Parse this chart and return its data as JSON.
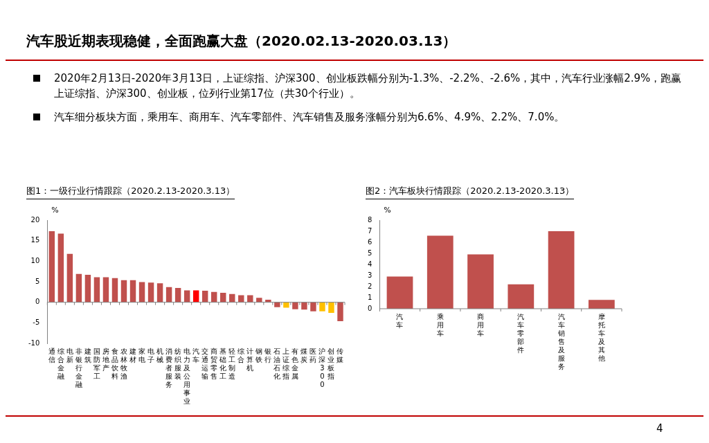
{
  "chart_data": [
    {
      "type": "other",
      "title": "汽车股近期表现稳健，全面跑赢大盘（2020.02.13-2020.03.13）",
      "annotations": [
        "2020年2月13日-2020年3月13日，上证综指、沪深300、创业板跌幅分别为-1.3%、-2.2%、-2.6%，其中，汽车行业涨幅2.9%，跑赢上证综指、沪深300、创业板，位列行业第17位（共30个行业）。",
        "汽车细分板块方面，乘用车、商用车、汽车零部件、汽车销售及服务涨幅分别为6.6%、4.9%、2.2%、7.0%。",
        "4"
      ]
    },
    {
      "type": "bar",
      "title": "图1：一级行业行情跟踪（2020.2.13-2020.3.13）",
      "ylabel": "%",
      "ylim": [
        -10,
        20
      ],
      "yticks": [
        -10,
        -5,
        0,
        5,
        10,
        15,
        20
      ],
      "categories": [
        "通信",
        "综合金融",
        "电新",
        "非银行金融",
        "建筑",
        "国防军工",
        "房地产",
        "食品饮料",
        "农林牧渔",
        "建材",
        "家电",
        "电子",
        "机械",
        "消费者服务",
        "纺织服装",
        "电力及公用事业",
        "汽车",
        "交通运输",
        "商贸零售",
        "基础化工",
        "轻工制造",
        "综合",
        "计算机",
        "钢铁",
        "银行",
        "石油石化",
        "上证综指",
        "有色金属",
        "煤炭",
        "医药",
        "沪深300",
        "创业板指",
        "传媒"
      ],
      "values": [
        17.3,
        16.7,
        11.8,
        6.9,
        6.7,
        6.1,
        6.1,
        5.9,
        5.4,
        5.4,
        4.9,
        4.8,
        4.6,
        3.7,
        3.5,
        2.9,
        2.9,
        2.8,
        2.5,
        2.3,
        2.0,
        1.7,
        1.7,
        1.1,
        0.6,
        -1.2,
        -1.3,
        -1.7,
        -1.8,
        -2.2,
        -2.2,
        -2.6,
        -4.6
      ],
      "colors": [
        "#c0504d",
        "#c0504d",
        "#c0504d",
        "#c0504d",
        "#c0504d",
        "#c0504d",
        "#c0504d",
        "#c0504d",
        "#c0504d",
        "#c0504d",
        "#c0504d",
        "#c0504d",
        "#c0504d",
        "#c0504d",
        "#c0504d",
        "#c0504d",
        "#ff0000",
        "#c0504d",
        "#c0504d",
        "#c0504d",
        "#c0504d",
        "#c0504d",
        "#c0504d",
        "#c0504d",
        "#c0504d",
        "#c0504d",
        "#ffc000",
        "#c0504d",
        "#c0504d",
        "#c0504d",
        "#ffc000",
        "#ffc000",
        "#c0504d"
      ]
    },
    {
      "type": "bar",
      "title": "图2：汽车板块行情跟踪（2020.2.13-2020.3.13）",
      "ylabel": "%",
      "ylim": [
        0,
        8
      ],
      "yticks": [
        0,
        1,
        2,
        3,
        4,
        5,
        6,
        7,
        8
      ],
      "categories": [
        "汽车",
        "乘用车",
        "商用车",
        "汽车零部件",
        "汽车销售及服务",
        "摩托车及其他"
      ],
      "values": [
        2.9,
        6.6,
        4.9,
        2.2,
        7.0,
        0.8
      ],
      "color": "#c0504d"
    }
  ]
}
